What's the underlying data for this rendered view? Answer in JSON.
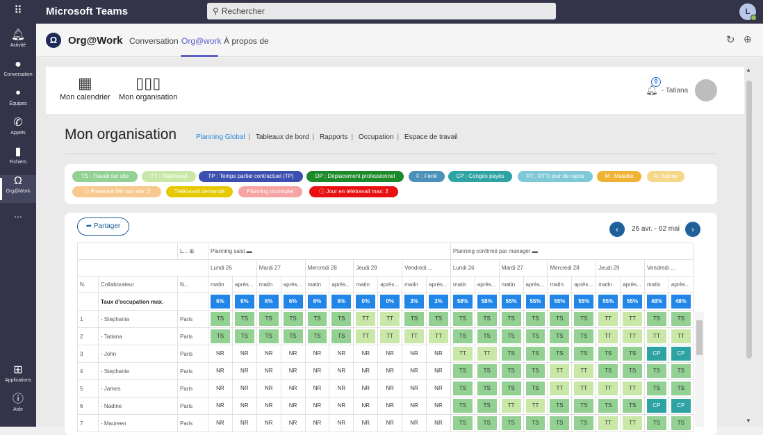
{
  "topbar": {
    "app_title": "Microsoft Teams",
    "search_placeholder": "Rechercher",
    "user_initial": "L"
  },
  "rail": {
    "items": [
      {
        "label": "Activité",
        "icon": "bell-icon"
      },
      {
        "label": "Conversation",
        "icon": "chat-icon"
      },
      {
        "label": "Équipes",
        "icon": "teams-icon"
      },
      {
        "label": "Appels",
        "icon": "phone-icon"
      },
      {
        "label": "Fichiers",
        "icon": "file-icon"
      },
      {
        "label": "Org@Work",
        "icon": "orgwork-icon"
      }
    ],
    "more": "...",
    "applications": "Applications",
    "help": "Aide"
  },
  "appheader": {
    "name": "Org@Work",
    "tabs": [
      "Conversation",
      "Org@work",
      "À propos de"
    ]
  },
  "nav": {
    "calendar": "Mon calendrier",
    "organisation": "Mon organisation",
    "notif_count": "0",
    "user": "- Tatiana"
  },
  "page": {
    "title": "Mon organisation",
    "links": [
      "Planning Global",
      "Tableaux de bord",
      "Rapports",
      "Occupation",
      "Espace de travail"
    ]
  },
  "legend": [
    {
      "label": "TS : Travail sur site",
      "color": "#92d192",
      "text": "#ffffff"
    },
    {
      "label": "TT : Télétravail",
      "color": "#c9e8a7",
      "text": "#ffffff"
    },
    {
      "label": "TP : Temps partiel contractuel (TP)",
      "color": "#3a4fb0",
      "text": "#ffffff"
    },
    {
      "label": "DP : Déplacement professionnel",
      "color": "#1c8a2a",
      "text": "#ffffff"
    },
    {
      "label": "F : Férié",
      "color": "#4a90b8",
      "text": "#ffffff"
    },
    {
      "label": "CP : Congés payés",
      "color": "#2ea3a3",
      "text": "#ffffff"
    },
    {
      "label": "RT : RTT/ jour de repos",
      "color": "#7fc8d8",
      "text": "#ffffff"
    },
    {
      "label": "M : Maladie",
      "color": "#f0b232",
      "text": "#ffffff"
    },
    {
      "label": "A : Autres",
      "color": "#f5d78a",
      "text": "#ffffff"
    },
    {
      "label": "ⓘ Présence Min sur site: 3",
      "color": "#f7c98f",
      "text": "#ffffff"
    },
    {
      "label": "Télétravail demandé",
      "color": "#e6c800",
      "text": "#ffffff"
    },
    {
      "label": "Planning incomplet",
      "color": "#f5a3a3",
      "text": "#ffffff"
    },
    {
      "label": "ⓘ Jour en télétravail max: 2",
      "color": "#e81010",
      "text": "#ffffff"
    }
  ],
  "grid": {
    "share": "Partager",
    "range": "26 avr. - 02 mai",
    "col_l": "L...",
    "col_n": "N...",
    "group_saisi": "Planning saisi",
    "group_confirme": "Planning confirmé par manager",
    "days": [
      "Lundi 26",
      "Mardi 27",
      "Mercredi 28",
      "Jeudi 29",
      "Vendredi ..."
    ],
    "slots": [
      "matin",
      "après..."
    ],
    "head_n": "N.",
    "head_collab": "Collaborateur",
    "occupancy_label": "Taux d'occupation max.",
    "occupancy_saisi": [
      "6%",
      "6%",
      "6%",
      "6%",
      "6%",
      "6%",
      "0%",
      "0%",
      "3%",
      "3%"
    ],
    "occupancy_confirme": [
      "58%",
      "58%",
      "55%",
      "55%",
      "55%",
      "55%",
      "55%",
      "55%",
      "48%",
      "48%"
    ],
    "rows": [
      {
        "n": "1",
        "name": "- Stephania",
        "loc": "Paris",
        "saisi": [
          "TS",
          "TS",
          "TS",
          "TS",
          "TS",
          "TS",
          "TT",
          "TT",
          "TS",
          "TS"
        ],
        "confirme": [
          "TS",
          "TS",
          "TS",
          "TS",
          "TS",
          "TS",
          "TT",
          "TT",
          "TS",
          "TS"
        ]
      },
      {
        "n": "2",
        "name": "- Tatiana",
        "loc": "Paris",
        "saisi": [
          "TS",
          "TS",
          "TS",
          "TS",
          "TS",
          "TS",
          "TT",
          "TT",
          "TT",
          "TT"
        ],
        "confirme": [
          "TS",
          "TS",
          "TS",
          "TS",
          "TS",
          "TS",
          "TT",
          "TT",
          "TT",
          "TT"
        ]
      },
      {
        "n": "3",
        "name": "- John",
        "loc": "Paris",
        "saisi": [
          "NR",
          "NR",
          "NR",
          "NR",
          "NR",
          "NR",
          "NR",
          "NR",
          "NR",
          "NR"
        ],
        "confirme": [
          "TT",
          "TT",
          "TS",
          "TS",
          "TS",
          "TS",
          "TS",
          "TS",
          "CP",
          "CP"
        ]
      },
      {
        "n": "4",
        "name": "- Stephanie",
        "loc": "Paris",
        "saisi": [
          "NR",
          "NR",
          "NR",
          "NR",
          "NR",
          "NR",
          "NR",
          "NR",
          "NR",
          "NR"
        ],
        "confirme": [
          "TS",
          "TS",
          "TS",
          "TS",
          "TT",
          "TT",
          "TS",
          "TS",
          "TS",
          "TS"
        ]
      },
      {
        "n": "5",
        "name": "- James",
        "loc": "Paris",
        "saisi": [
          "NR",
          "NR",
          "NR",
          "NR",
          "NR",
          "NR",
          "NR",
          "NR",
          "NR",
          "NR"
        ],
        "confirme": [
          "TS",
          "TS",
          "TS",
          "TS",
          "TT",
          "TT",
          "TT",
          "TT",
          "TS",
          "TS"
        ]
      },
      {
        "n": "6",
        "name": "- Nadine",
        "loc": "Paris",
        "saisi": [
          "NR",
          "NR",
          "NR",
          "NR",
          "NR",
          "NR",
          "NR",
          "NR",
          "NR",
          "NR"
        ],
        "confirme": [
          "TS",
          "TS",
          "TT",
          "TT",
          "TS",
          "TS",
          "TS",
          "TS",
          "CP",
          "CP"
        ]
      },
      {
        "n": "7",
        "name": "- Maureen",
        "loc": "Paris",
        "saisi": [
          "NR",
          "NR",
          "NR",
          "NR",
          "NR",
          "NR",
          "NR",
          "NR",
          "NR",
          "NR"
        ],
        "confirme": [
          "TS",
          "TS",
          "TS",
          "TS",
          "TS",
          "TS",
          "TT",
          "TT",
          "TS",
          "TS"
        ]
      }
    ]
  }
}
